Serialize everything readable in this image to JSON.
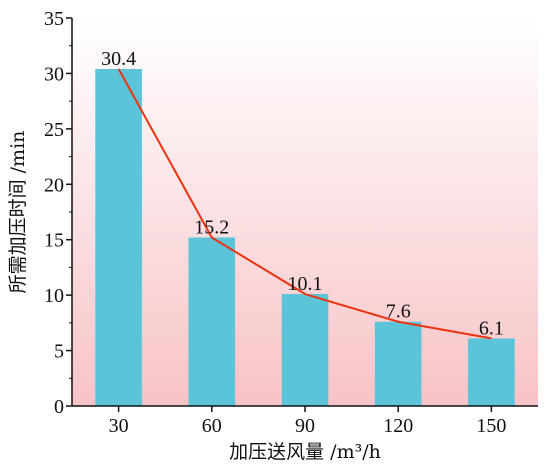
{
  "chart_data": {
    "type": "bar",
    "categories": [
      "30",
      "60",
      "90",
      "120",
      "150"
    ],
    "values": [
      30.4,
      15.2,
      10.1,
      7.6,
      6.1
    ],
    "data_labels": [
      "30.4",
      "15.2",
      "10.1",
      "7.6",
      "6.1"
    ],
    "overlay_line": {
      "type": "line",
      "values": [
        30.4,
        15.2,
        10.1,
        7.6,
        6.1
      ]
    },
    "title": "",
    "xlabel": "加压送风量 /m³/h",
    "ylabel": "所需加压时间 /min",
    "ylim": [
      0,
      35
    ],
    "yticks": [
      "0",
      "5",
      "10",
      "15",
      "20",
      "25",
      "30",
      "35"
    ],
    "grid": false,
    "colors": {
      "bar": "#5bc4d8",
      "line": "#ee3311",
      "background_top": "#ffffff",
      "background_bottom": "#f7c3c7",
      "axis": "#111111"
    }
  }
}
